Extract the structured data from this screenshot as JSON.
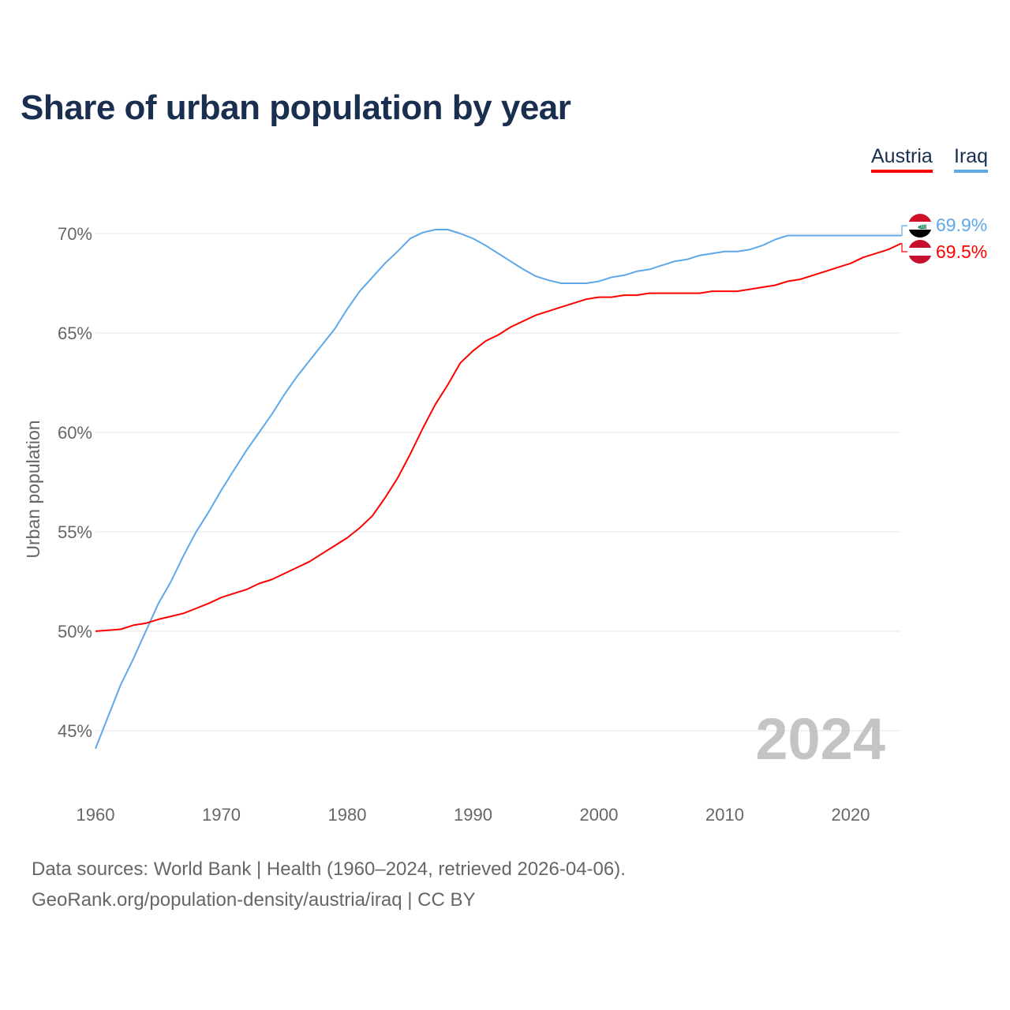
{
  "chart_data": {
    "type": "line",
    "title": "Share of urban population by year",
    "xlabel": "",
    "ylabel": "Urban population",
    "xlim": [
      1960,
      2024
    ],
    "ylim": [
      44,
      72
    ],
    "x_ticks": [
      1960,
      1970,
      1980,
      1990,
      2000,
      2010,
      2020
    ],
    "x_tick_labels": [
      "1960",
      "1970",
      "1980",
      "1990",
      "2000",
      "2010",
      "2020"
    ],
    "y_ticks": [
      45,
      50,
      55,
      60,
      65,
      70
    ],
    "y_tick_labels": [
      "45%",
      "50%",
      "55%",
      "60%",
      "65%",
      "70%"
    ],
    "grid": true,
    "legend_placement": "top-right",
    "year_watermark": "2024",
    "x": [
      1960,
      1961,
      1962,
      1963,
      1964,
      1965,
      1966,
      1967,
      1968,
      1969,
      1970,
      1971,
      1972,
      1973,
      1974,
      1975,
      1976,
      1977,
      1978,
      1979,
      1980,
      1981,
      1982,
      1983,
      1984,
      1985,
      1986,
      1987,
      1988,
      1989,
      1990,
      1991,
      1992,
      1993,
      1994,
      1995,
      1996,
      1997,
      1998,
      1999,
      2000,
      2001,
      2002,
      2003,
      2004,
      2005,
      2006,
      2007,
      2008,
      2009,
      2010,
      2011,
      2012,
      2013,
      2014,
      2015,
      2016,
      2017,
      2018,
      2019,
      2020,
      2021,
      2022,
      2023,
      2024
    ],
    "series": [
      {
        "name": "Austria",
        "color": "#ff0000",
        "end_label": "69.5%",
        "values": [
          50.0,
          50.05,
          50.1,
          50.3,
          50.4,
          50.6,
          50.75,
          50.9,
          51.15,
          51.4,
          51.7,
          51.9,
          52.1,
          52.4,
          52.6,
          52.9,
          53.2,
          53.5,
          53.9,
          54.3,
          54.7,
          55.2,
          55.8,
          56.7,
          57.7,
          58.9,
          60.2,
          61.4,
          62.4,
          63.5,
          64.1,
          64.6,
          64.9,
          65.3,
          65.6,
          65.9,
          66.1,
          66.3,
          66.5,
          66.7,
          66.8,
          66.8,
          66.9,
          66.9,
          67.0,
          67.0,
          67.0,
          67.0,
          67.0,
          67.1,
          67.1,
          67.1,
          67.2,
          67.3,
          67.4,
          67.6,
          67.7,
          67.9,
          68.1,
          68.3,
          68.5,
          68.8,
          69.0,
          69.2,
          69.5
        ]
      },
      {
        "name": "Iraq",
        "color": "#5fa8e8",
        "end_label": "69.9%",
        "values": [
          44.1,
          45.7,
          47.3,
          48.6,
          50.0,
          51.4,
          52.5,
          53.8,
          55.0,
          56.0,
          57.1,
          58.1,
          59.1,
          60.0,
          60.9,
          61.9,
          62.8,
          63.6,
          64.4,
          65.2,
          66.2,
          67.1,
          67.8,
          68.5,
          69.1,
          69.75,
          70.05,
          70.2,
          70.2,
          70.0,
          69.75,
          69.4,
          69.0,
          68.6,
          68.2,
          67.85,
          67.65,
          67.5,
          67.5,
          67.5,
          67.6,
          67.8,
          67.9,
          68.1,
          68.2,
          68.4,
          68.6,
          68.7,
          68.9,
          69.0,
          69.1,
          69.1,
          69.2,
          69.4,
          69.7,
          69.9,
          69.9,
          69.9,
          69.9,
          69.9,
          69.9,
          69.9,
          69.9,
          69.9,
          69.9
        ]
      }
    ]
  },
  "footer": {
    "line1": "Data sources: World Bank | Health (1960–2024, retrieved 2026-04-06).",
    "line2": "GeoRank.org/population-density/austria/iraq | CC BY"
  }
}
